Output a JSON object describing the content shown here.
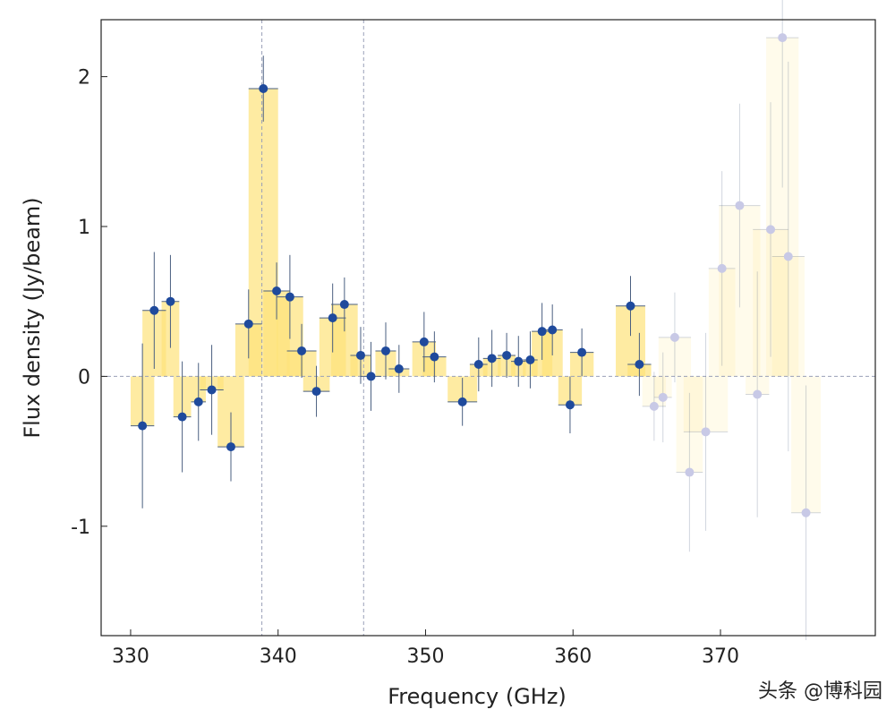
{
  "chart_data": {
    "type": "scatter",
    "title": "",
    "xlabel": "Frequency (GHz)",
    "ylabel": "Flux density (Jy/beam)",
    "xlim": [
      328,
      380.5
    ],
    "ylim": [
      -1.73,
      2.38
    ],
    "xticks": [
      330,
      340,
      350,
      360,
      370
    ],
    "yticks": [
      -1,
      0,
      1,
      2
    ],
    "xtick_labels": [
      "330",
      "340",
      "350",
      "360",
      "370"
    ],
    "ytick_labels": [
      "-1",
      "0",
      "1",
      "2"
    ],
    "grid": false,
    "reference_lines_x": [
      338.9,
      345.8
    ],
    "reference_line_y": 0,
    "points": [
      {
        "x": 330.8,
        "y": -0.33,
        "err": 0.55,
        "xerr": 0.8,
        "faded": false
      },
      {
        "x": 331.6,
        "y": 0.44,
        "err": 0.39,
        "xerr": 0.8,
        "faded": false
      },
      {
        "x": 332.7,
        "y": 0.5,
        "err": 0.31,
        "xerr": 0.6,
        "faded": false
      },
      {
        "x": 333.5,
        "y": -0.27,
        "err": 0.37,
        "xerr": 0.6,
        "faded": false
      },
      {
        "x": 334.6,
        "y": -0.17,
        "err": 0.26,
        "xerr": 0.5,
        "faded": false
      },
      {
        "x": 335.5,
        "y": -0.09,
        "err": 0.3,
        "xerr": 0.8,
        "faded": false
      },
      {
        "x": 336.8,
        "y": -0.47,
        "err": 0.23,
        "xerr": 0.9,
        "faded": false
      },
      {
        "x": 338.0,
        "y": 0.35,
        "err": 0.23,
        "xerr": 0.9,
        "faded": false
      },
      {
        "x": 339.0,
        "y": 1.92,
        "err": 0.22,
        "xerr": 1.0,
        "faded": false
      },
      {
        "x": 339.9,
        "y": 0.57,
        "err": 0.19,
        "xerr": 0.9,
        "faded": false
      },
      {
        "x": 340.8,
        "y": 0.53,
        "err": 0.28,
        "xerr": 0.9,
        "faded": false
      },
      {
        "x": 341.6,
        "y": 0.17,
        "err": 0.18,
        "xerr": 1.0,
        "faded": false
      },
      {
        "x": 342.6,
        "y": -0.1,
        "err": 0.17,
        "xerr": 0.9,
        "faded": false
      },
      {
        "x": 343.7,
        "y": 0.39,
        "err": 0.23,
        "xerr": 0.9,
        "faded": false
      },
      {
        "x": 344.5,
        "y": 0.48,
        "err": 0.18,
        "xerr": 0.9,
        "faded": false
      },
      {
        "x": 345.6,
        "y": 0.14,
        "err": 0.19,
        "xerr": 0.7,
        "faded": false
      },
      {
        "x": 346.3,
        "y": 0.0,
        "err": 0.23,
        "xerr": 0.7,
        "faded": false
      },
      {
        "x": 347.3,
        "y": 0.17,
        "err": 0.19,
        "xerr": 0.7,
        "faded": false
      },
      {
        "x": 348.2,
        "y": 0.05,
        "err": 0.16,
        "xerr": 0.7,
        "faded": false
      },
      {
        "x": 349.9,
        "y": 0.23,
        "err": 0.2,
        "xerr": 0.8,
        "faded": false
      },
      {
        "x": 350.6,
        "y": 0.13,
        "err": 0.17,
        "xerr": 0.8,
        "faded": false
      },
      {
        "x": 352.5,
        "y": -0.17,
        "err": 0.16,
        "xerr": 1.0,
        "faded": false
      },
      {
        "x": 353.6,
        "y": 0.08,
        "err": 0.18,
        "xerr": 0.6,
        "faded": false
      },
      {
        "x": 354.5,
        "y": 0.12,
        "err": 0.19,
        "xerr": 0.6,
        "faded": false
      },
      {
        "x": 355.5,
        "y": 0.14,
        "err": 0.15,
        "xerr": 0.6,
        "faded": false
      },
      {
        "x": 356.3,
        "y": 0.1,
        "err": 0.17,
        "xerr": 0.5,
        "faded": false
      },
      {
        "x": 357.1,
        "y": 0.11,
        "err": 0.19,
        "xerr": 0.5,
        "faded": false
      },
      {
        "x": 357.9,
        "y": 0.3,
        "err": 0.19,
        "xerr": 0.7,
        "faded": false
      },
      {
        "x": 358.6,
        "y": 0.31,
        "err": 0.17,
        "xerr": 0.7,
        "faded": false
      },
      {
        "x": 359.8,
        "y": -0.19,
        "err": 0.19,
        "xerr": 0.8,
        "faded": false
      },
      {
        "x": 360.6,
        "y": 0.16,
        "err": 0.16,
        "xerr": 0.8,
        "faded": false
      },
      {
        "x": 363.9,
        "y": 0.47,
        "err": 0.2,
        "xerr": 1.0,
        "faded": false
      },
      {
        "x": 364.5,
        "y": 0.08,
        "err": 0.21,
        "xerr": 0.8,
        "faded": false
      },
      {
        "x": 365.5,
        "y": -0.2,
        "err": 0.23,
        "xerr": 0.8,
        "faded": true
      },
      {
        "x": 366.1,
        "y": -0.14,
        "err": 0.3,
        "xerr": 0.6,
        "faded": true
      },
      {
        "x": 366.9,
        "y": 0.26,
        "err": 0.3,
        "xerr": 1.1,
        "faded": true
      },
      {
        "x": 367.9,
        "y": -0.64,
        "err": 0.53,
        "xerr": 0.9,
        "faded": true
      },
      {
        "x": 369.0,
        "y": -0.37,
        "err": 0.66,
        "xerr": 1.5,
        "faded": true
      },
      {
        "x": 370.1,
        "y": 0.72,
        "err": 0.65,
        "xerr": 0.9,
        "faded": true
      },
      {
        "x": 371.3,
        "y": 1.14,
        "err": 0.68,
        "xerr": 1.4,
        "faded": true
      },
      {
        "x": 372.5,
        "y": -0.12,
        "err": 0.82,
        "xerr": 0.8,
        "faded": true
      },
      {
        "x": 373.4,
        "y": 0.98,
        "err": 0.85,
        "xerr": 1.2,
        "faded": true
      },
      {
        "x": 374.2,
        "y": 2.26,
        "err": 1.0,
        "xerr": 1.1,
        "faded": true
      },
      {
        "x": 374.6,
        "y": 0.8,
        "err": 1.3,
        "xerr": 1.1,
        "faded": true
      },
      {
        "x": 375.8,
        "y": -0.91,
        "err": 0.85,
        "xerr": 1.0,
        "faded": true
      }
    ],
    "colors": {
      "point": "#1f4a9c",
      "bar": "#fde27a",
      "errbar": "#4a5f80",
      "refline": "#9aa0b8"
    }
  },
  "watermark": "头条 @博科园"
}
